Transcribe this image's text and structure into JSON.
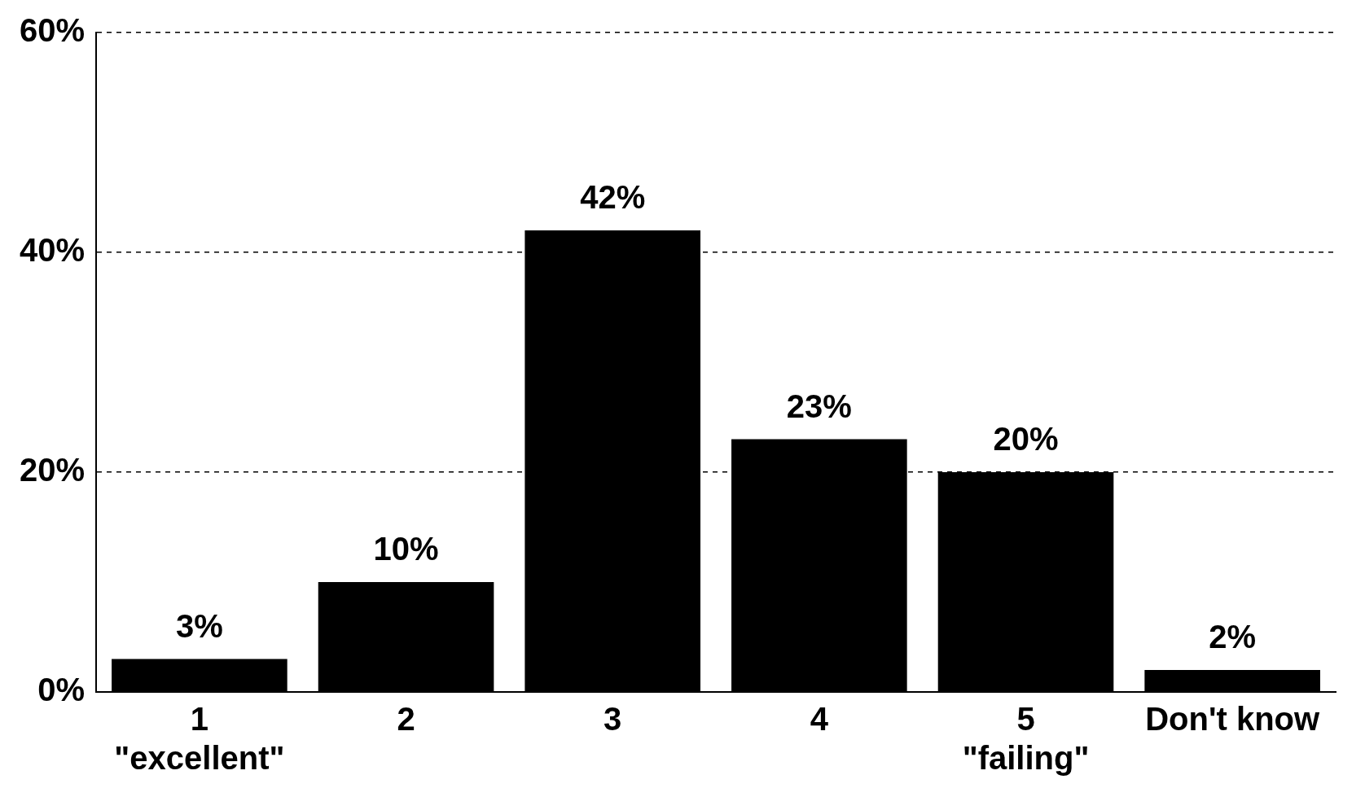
{
  "chart_data": {
    "type": "bar",
    "categories": [
      "1\n\"excellent\"",
      "2",
      "3",
      "4",
      "5\n\"failing\"",
      "Don't know"
    ],
    "values": [
      3,
      10,
      42,
      23,
      20,
      2
    ],
    "value_labels": [
      "3%",
      "10%",
      "42%",
      "23%",
      "20%",
      "2%"
    ],
    "color": "#000000",
    "ylim": [
      0,
      60
    ],
    "yticks": [
      {
        "value": 0,
        "label": "0%"
      },
      {
        "value": 20,
        "label": "20%"
      },
      {
        "value": 40,
        "label": "40%"
      },
      {
        "value": 60,
        "label": "60%"
      }
    ],
    "grid": "y",
    "line_style": "dashed",
    "legend": false
  }
}
